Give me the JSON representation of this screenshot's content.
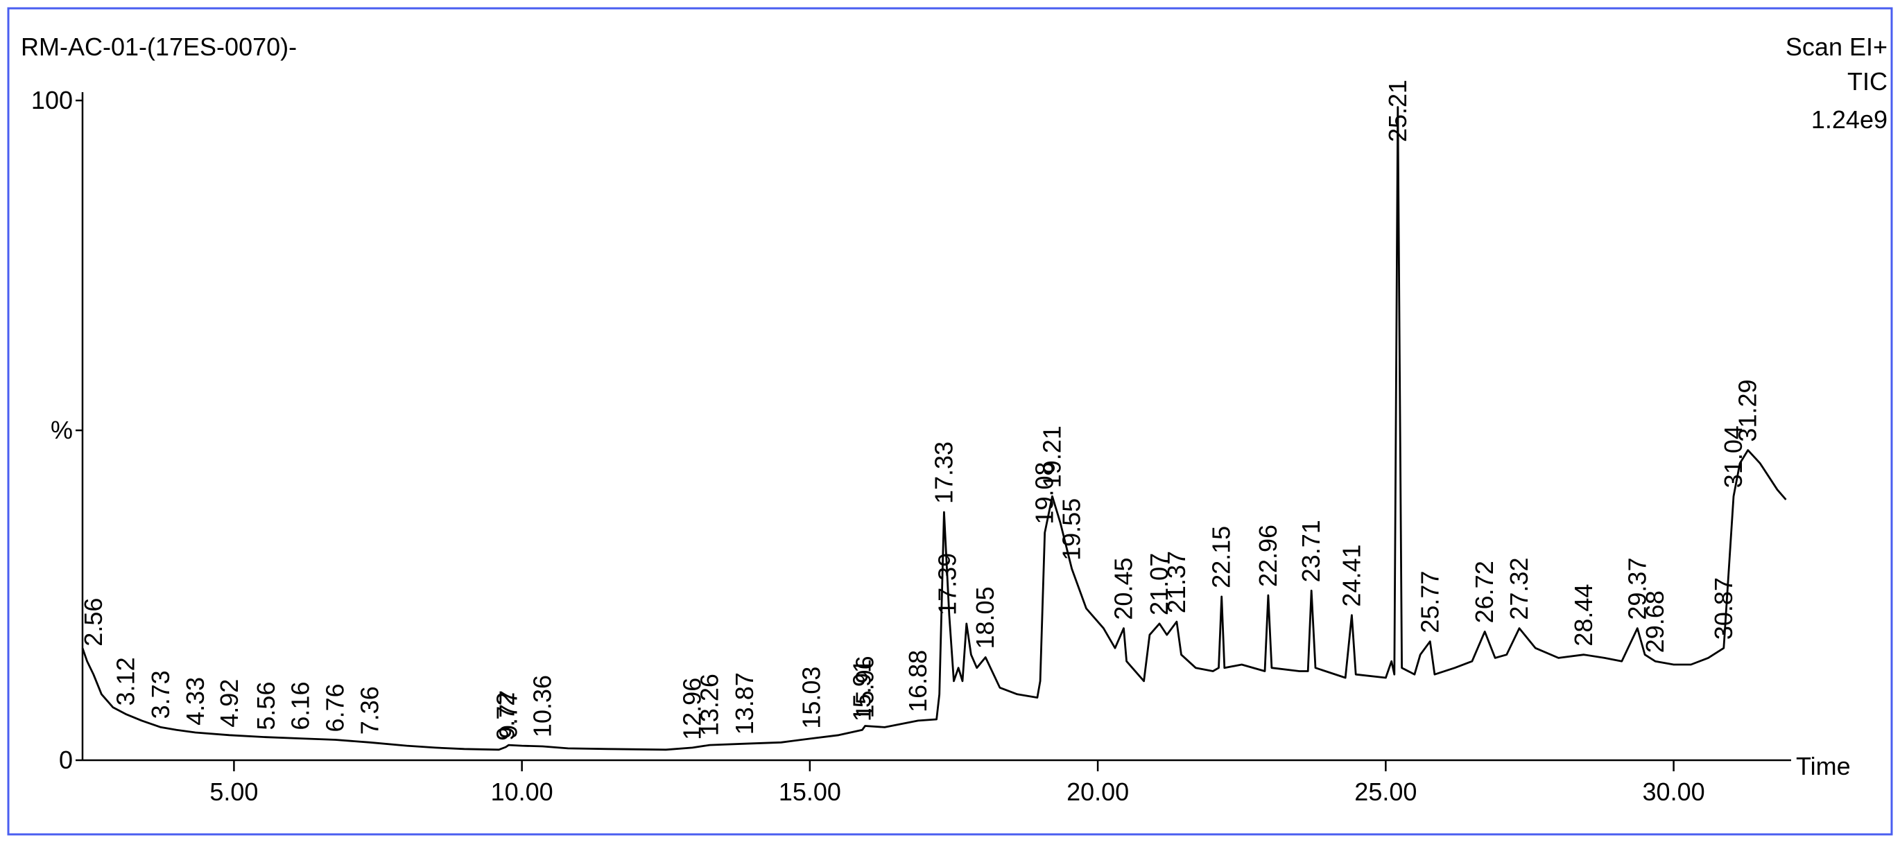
{
  "chart_data": {
    "type": "line",
    "title": "RM-AC-01-(17ES-0070)-",
    "scan_mode": "Scan EI+",
    "trace_type": "TIC",
    "max_intensity": "1.24e9",
    "x_label": "Time",
    "xlim": [
      2.37,
      32.04
    ],
    "ylim": [
      0,
      100
    ],
    "xticks": [
      {
        "value": 5,
        "label": "5.00"
      },
      {
        "value": 10,
        "label": "10.00"
      },
      {
        "value": 15,
        "label": "15.00"
      },
      {
        "value": 20,
        "label": "20.00"
      },
      {
        "value": 25,
        "label": "25.00"
      },
      {
        "value": 30,
        "label": "30.00"
      }
    ],
    "yticks": [
      0,
      {
        "value": 50,
        "label": "%"
      },
      100
    ],
    "series": [
      {
        "color": "#000000",
        "x": [
          2.37,
          2.45,
          2.56,
          2.7,
          2.9,
          3.12,
          3.4,
          3.73,
          4.0,
          4.33,
          4.92,
          5.56,
          6.16,
          6.76,
          7.36,
          8.0,
          8.5,
          9.0,
          9.6,
          9.72,
          9.77,
          10.0,
          10.36,
          10.8,
          11.5,
          12.5,
          12.96,
          13.26,
          13.87,
          14.5,
          15.03,
          15.5,
          15.91,
          15.96,
          16.3,
          16.88,
          17.2,
          17.25,
          17.33,
          17.42,
          17.5,
          17.58,
          17.65,
          17.72,
          17.8,
          17.9,
          18.05,
          18.3,
          18.6,
          18.95,
          19.0,
          19.08,
          19.21,
          19.35,
          19.55,
          19.8,
          20.1,
          20.3,
          20.45,
          20.5,
          20.8,
          20.9,
          21.07,
          21.2,
          21.37,
          21.45,
          21.7,
          22.0,
          22.1,
          22.15,
          22.2,
          22.5,
          22.9,
          22.96,
          23.02,
          23.5,
          23.65,
          23.71,
          23.78,
          24.3,
          24.41,
          24.48,
          25.0,
          25.1,
          25.15,
          25.21,
          25.28,
          25.5,
          25.6,
          25.77,
          25.85,
          26.2,
          26.5,
          26.72,
          26.9,
          27.1,
          27.32,
          27.6,
          28.0,
          28.44,
          28.8,
          29.1,
          29.37,
          29.5,
          29.68,
          30.0,
          30.3,
          30.6,
          30.87,
          31.04,
          31.15,
          31.29,
          31.5,
          31.8,
          31.95
        ],
        "values": [
          17,
          15,
          13,
          10,
          8,
          7,
          6,
          5,
          4.6,
          4.2,
          3.8,
          3.5,
          3.3,
          3.1,
          2.7,
          2.2,
          1.9,
          1.7,
          1.6,
          2.0,
          2.3,
          2.2,
          2.1,
          1.8,
          1.7,
          1.6,
          1.9,
          2.3,
          2.5,
          2.7,
          3.3,
          3.8,
          4.6,
          5.2,
          5.0,
          6,
          6.2,
          10,
          37.6,
          22,
          12,
          14,
          12,
          20.7,
          16,
          14,
          15.6,
          11,
          10,
          9.5,
          12,
          34.5,
          40,
          36,
          29,
          23,
          20,
          17,
          20,
          15,
          12,
          19,
          20.7,
          19,
          21,
          16,
          14,
          13.5,
          14,
          24.8,
          14,
          14.5,
          13.5,
          25,
          14,
          13.5,
          13.5,
          25.7,
          14,
          12.5,
          22,
          13,
          12.5,
          15,
          13,
          99,
          14,
          13,
          16,
          18,
          13,
          14,
          15,
          19.5,
          15.5,
          16,
          20,
          17,
          15.5,
          16,
          15.5,
          15,
          20,
          16,
          15,
          14.5,
          14.5,
          15.5,
          17,
          40,
          45,
          47,
          45,
          41,
          39.5
        ]
      }
    ],
    "peaks": {
      "x": [
        2.56,
        3.12,
        3.73,
        4.33,
        4.92,
        5.56,
        6.16,
        6.76,
        7.36,
        9.72,
        9.77,
        10.36,
        12.96,
        13.26,
        13.87,
        15.03,
        15.91,
        15.96,
        16.88,
        17.33,
        17.39,
        18.05,
        19.08,
        19.21,
        19.55,
        20.45,
        21.07,
        21.37,
        22.15,
        22.96,
        23.71,
        24.41,
        25.21,
        25.77,
        26.72,
        27.32,
        28.44,
        29.37,
        29.68,
        30.87,
        31.04,
        31.29
      ],
      "values": [
        16,
        7,
        5,
        4,
        3.7,
        3.3,
        3.3,
        3,
        2.6,
        1.7,
        2,
        2.2,
        1.8,
        2.4,
        2.6,
        3.5,
        4.6,
        5.1,
        6,
        37.6,
        20.7,
        15.6,
        34.5,
        40,
        29,
        20,
        20.7,
        21,
        24.8,
        25,
        25.7,
        22,
        99,
        18,
        19.5,
        20,
        16,
        20,
        15,
        17,
        40,
        47
      ]
    }
  }
}
